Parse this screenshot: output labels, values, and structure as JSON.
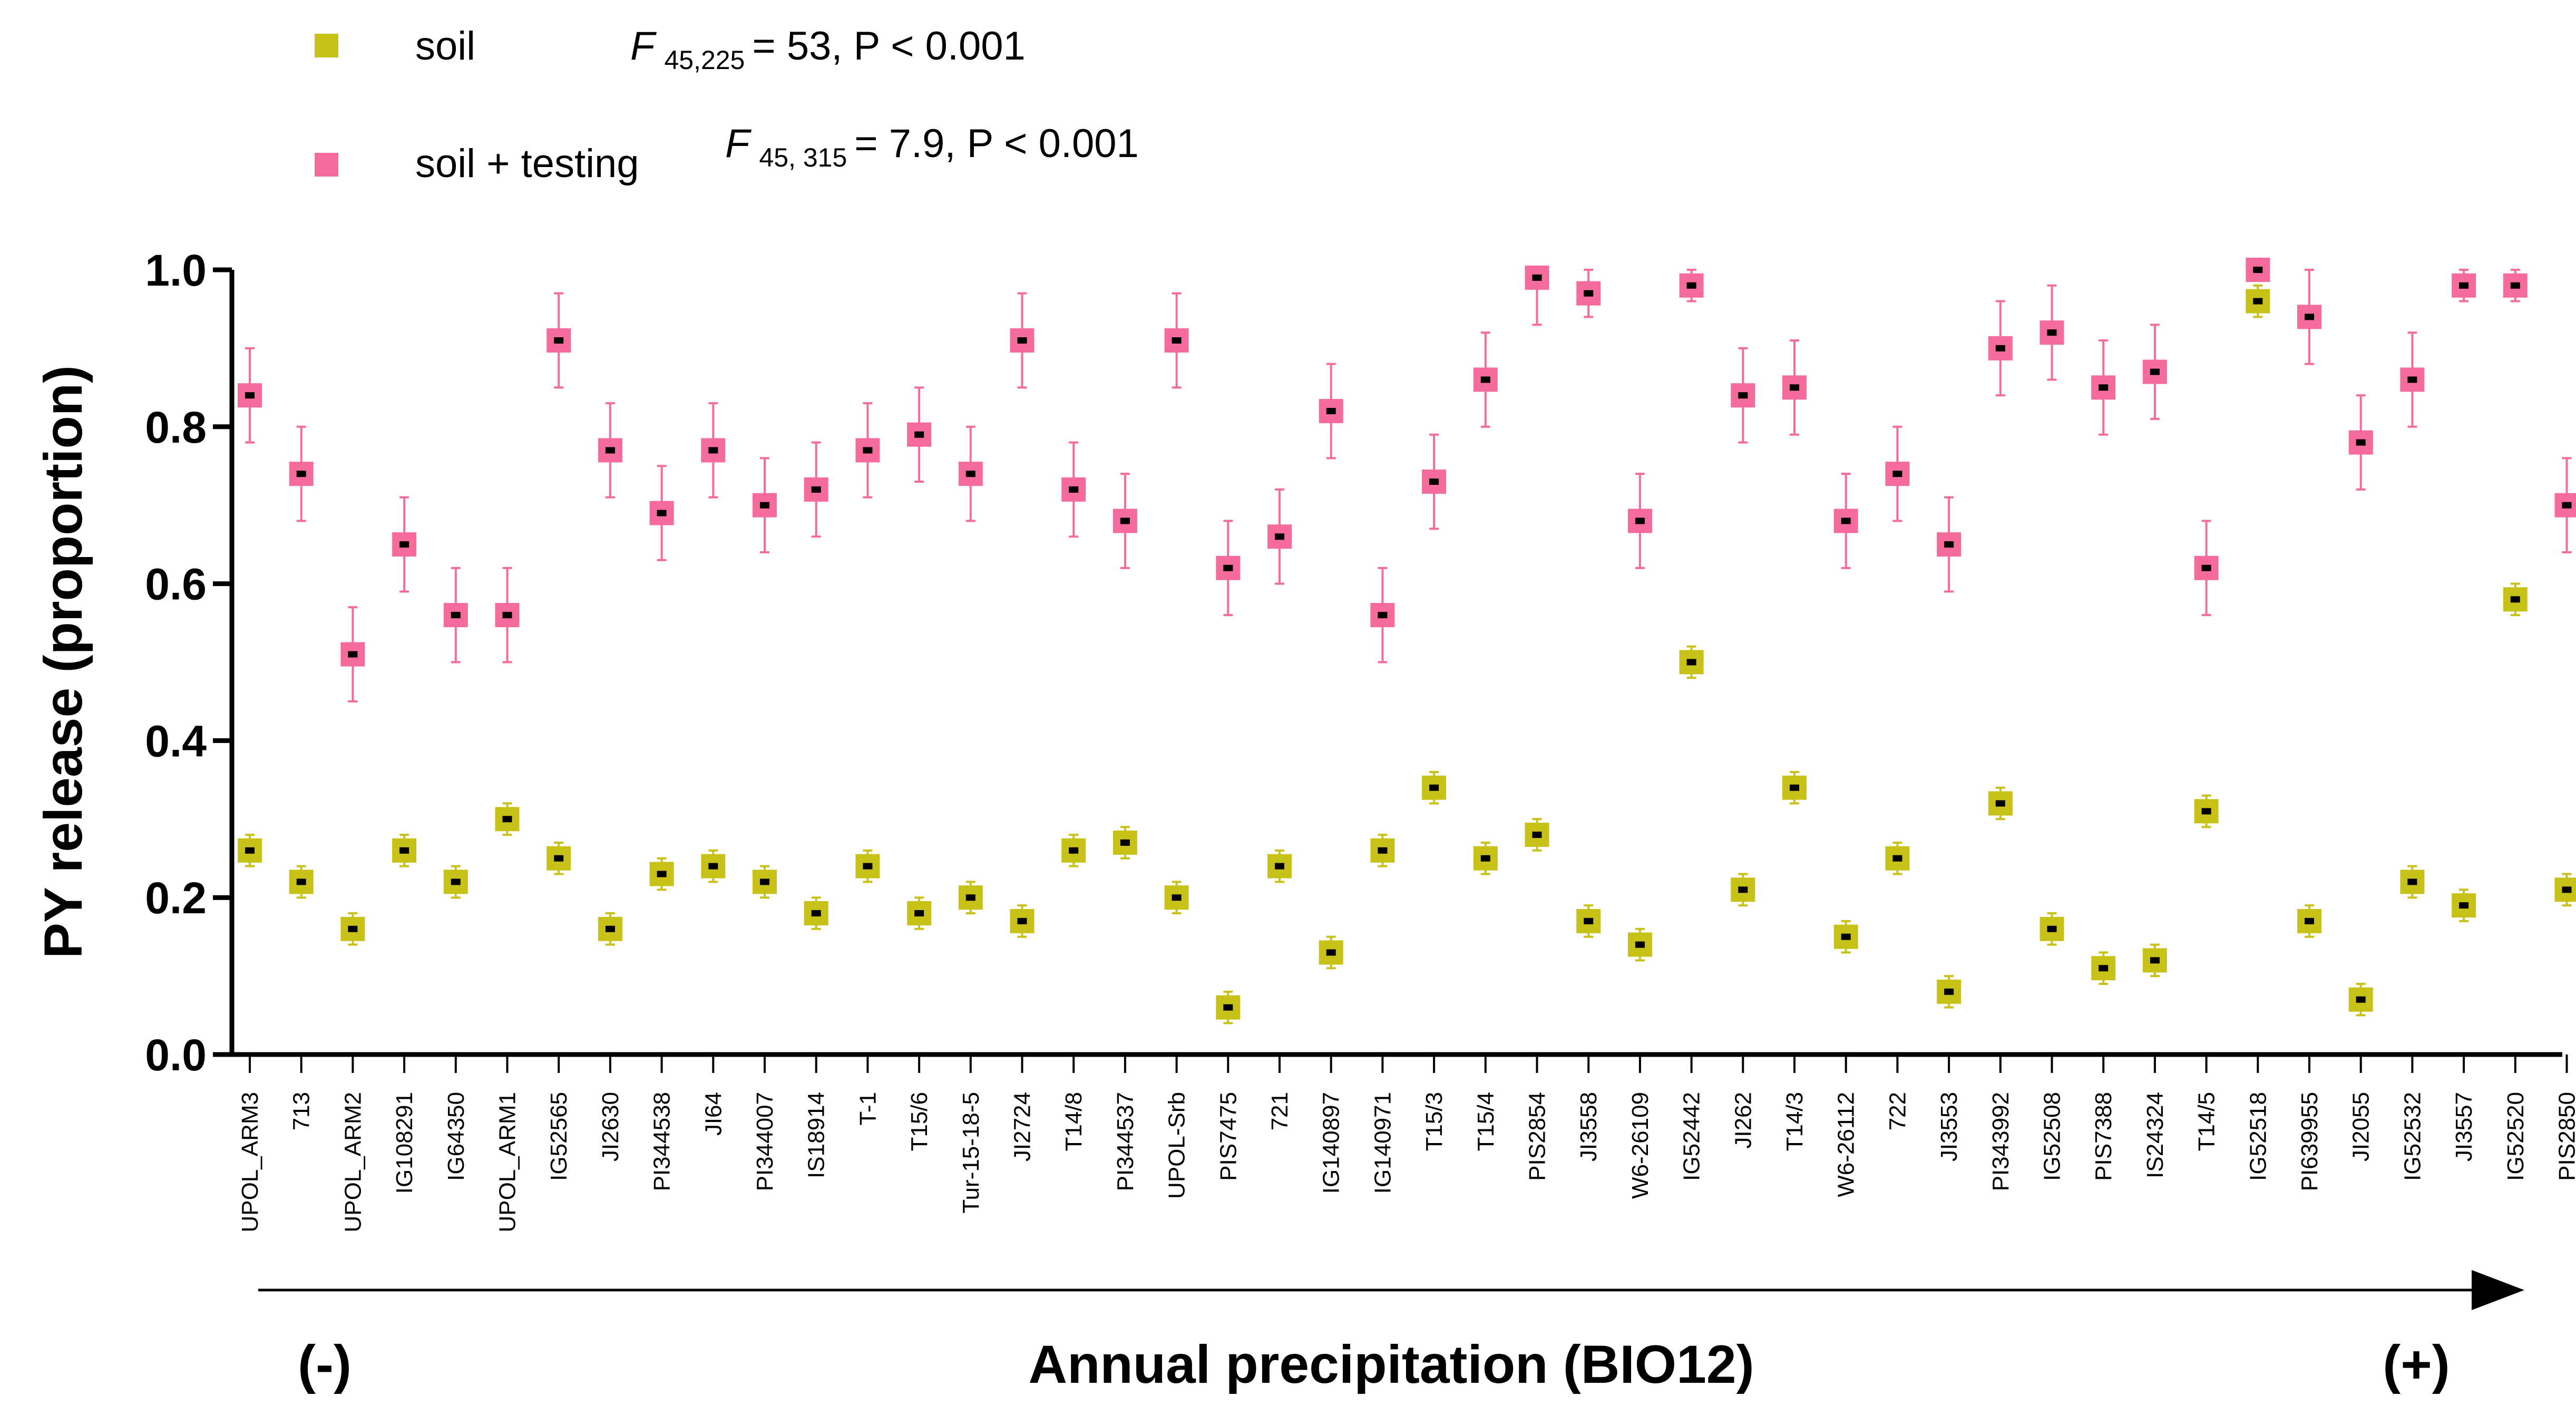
{
  "chart_data": {
    "type": "scatter",
    "ylabel": "PY release (proportion)",
    "xlabel": "Annual precipitation (BIO12)",
    "xlabel_left_sign": "(-)",
    "xlabel_right_sign": "(+)",
    "ylim": [
      0,
      1.0
    ],
    "yticks": [
      "0.0",
      "0.2",
      "0.4",
      "0.6",
      "0.8",
      "1.0"
    ],
    "legend": [
      {
        "name": "soil",
        "color": "#c8c218",
        "stat_prefix": "F",
        "stat_sub": "45,225",
        "stat_rest": "= 53, P < 0.001"
      },
      {
        "name": "soil + testing",
        "color": "#f56b9c",
        "stat_prefix": "F",
        "stat_sub": "45, 315",
        "stat_rest": "= 7.9, P < 0.001"
      }
    ],
    "categories": [
      "UPOL_ARM3",
      "713",
      "UPOL_ARM2",
      "IG108291",
      "IG64350",
      "UPOL_ARM1",
      "IG52565",
      "JI2630",
      "PI344538",
      "JI64",
      "PI344007",
      "IS18914",
      "T-1",
      "T15/6",
      "Tur-15-18-5",
      "JI2724",
      "T14/8",
      "PI344537",
      "UPOL-Srb",
      "PIS7475",
      "721",
      "IG140897",
      "IG140971",
      "T15/3",
      "T15/4",
      "PIS2854",
      "JI3558",
      "W6-26109",
      "IG52442",
      "JI262",
      "T14/3",
      "W6-26112",
      "722",
      "JI3553",
      "PI343992",
      "IG52508",
      "PIS7388",
      "IS24324",
      "T14/5",
      "IG52518",
      "PI639955",
      "JI2055",
      "IG52532",
      "JI3557",
      "IG52520",
      "PIS2850"
    ],
    "series": [
      {
        "name": "soil",
        "values": [
          0.26,
          0.22,
          0.16,
          0.26,
          0.22,
          0.3,
          0.25,
          0.16,
          0.23,
          0.24,
          0.22,
          0.18,
          0.24,
          0.18,
          0.2,
          0.17,
          0.26,
          0.27,
          0.2,
          0.06,
          0.24,
          0.13,
          0.26,
          0.34,
          0.25,
          0.28,
          0.17,
          0.14,
          0.5,
          0.21,
          0.34,
          0.15,
          0.25,
          0.08,
          0.32,
          0.16,
          0.11,
          0.12,
          0.31,
          0.96,
          0.17,
          0.07,
          0.22,
          0.19,
          0.58,
          0.21
        ],
        "errors": [
          0.02,
          0.02,
          0.02,
          0.02,
          0.02,
          0.02,
          0.02,
          0.02,
          0.02,
          0.02,
          0.02,
          0.02,
          0.02,
          0.02,
          0.02,
          0.02,
          0.02,
          0.02,
          0.02,
          0.02,
          0.02,
          0.02,
          0.02,
          0.02,
          0.02,
          0.02,
          0.02,
          0.02,
          0.02,
          0.02,
          0.02,
          0.02,
          0.02,
          0.02,
          0.02,
          0.02,
          0.02,
          0.02,
          0.02,
          0.02,
          0.02,
          0.02,
          0.02,
          0.02,
          0.02,
          0.02
        ]
      },
      {
        "name": "soil + testing",
        "values": [
          0.84,
          0.74,
          0.51,
          0.65,
          0.56,
          0.56,
          0.91,
          0.77,
          0.69,
          0.77,
          0.7,
          0.72,
          0.77,
          0.79,
          0.74,
          0.91,
          0.72,
          0.68,
          0.91,
          0.62,
          0.66,
          0.82,
          0.56,
          0.73,
          0.86,
          0.99,
          0.97,
          0.68,
          0.98,
          0.84,
          0.85,
          0.68,
          0.74,
          0.65,
          0.9,
          0.92,
          0.85,
          0.87,
          0.62,
          1.0,
          0.94,
          0.78,
          0.86,
          0.98,
          0.98,
          0.7
        ],
        "errors": [
          0.06,
          0.06,
          0.06,
          0.06,
          0.06,
          0.06,
          0.06,
          0.06,
          0.06,
          0.06,
          0.06,
          0.06,
          0.06,
          0.06,
          0.06,
          0.06,
          0.06,
          0.06,
          0.06,
          0.06,
          0.06,
          0.06,
          0.06,
          0.06,
          0.06,
          0.06,
          0.03,
          0.06,
          0.02,
          0.06,
          0.06,
          0.06,
          0.06,
          0.06,
          0.06,
          0.06,
          0.06,
          0.06,
          0.06,
          0.0,
          0.06,
          0.06,
          0.06,
          0.02,
          0.02,
          0.06
        ]
      }
    ]
  }
}
